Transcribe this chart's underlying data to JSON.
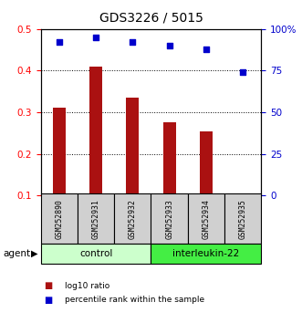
{
  "title": "GDS3226 / 5015",
  "samples": [
    "GSM252890",
    "GSM252931",
    "GSM252932",
    "GSM252933",
    "GSM252934",
    "GSM252935"
  ],
  "bar_values": [
    0.31,
    0.41,
    0.335,
    0.275,
    0.253,
    0.1
  ],
  "percentile_values": [
    92,
    95,
    92,
    90,
    88,
    74
  ],
  "bar_color": "#aa1111",
  "dot_color": "#0000cc",
  "ylim_left": [
    0.1,
    0.5
  ],
  "ylim_right": [
    0,
    100
  ],
  "yticks_left": [
    0.1,
    0.2,
    0.3,
    0.4,
    0.5
  ],
  "ytick_labels_right": [
    "0",
    "25",
    "50",
    "75",
    "100%"
  ],
  "yticks_right": [
    0,
    25,
    50,
    75,
    100
  ],
  "control_label": "control",
  "treatment_label": "interleukin-22",
  "control_color": "#ccffcc",
  "treatment_color": "#44ee44",
  "agent_label": "agent",
  "legend_bar_label": "log10 ratio",
  "legend_dot_label": "percentile rank within the sample",
  "bar_width": 0.35
}
